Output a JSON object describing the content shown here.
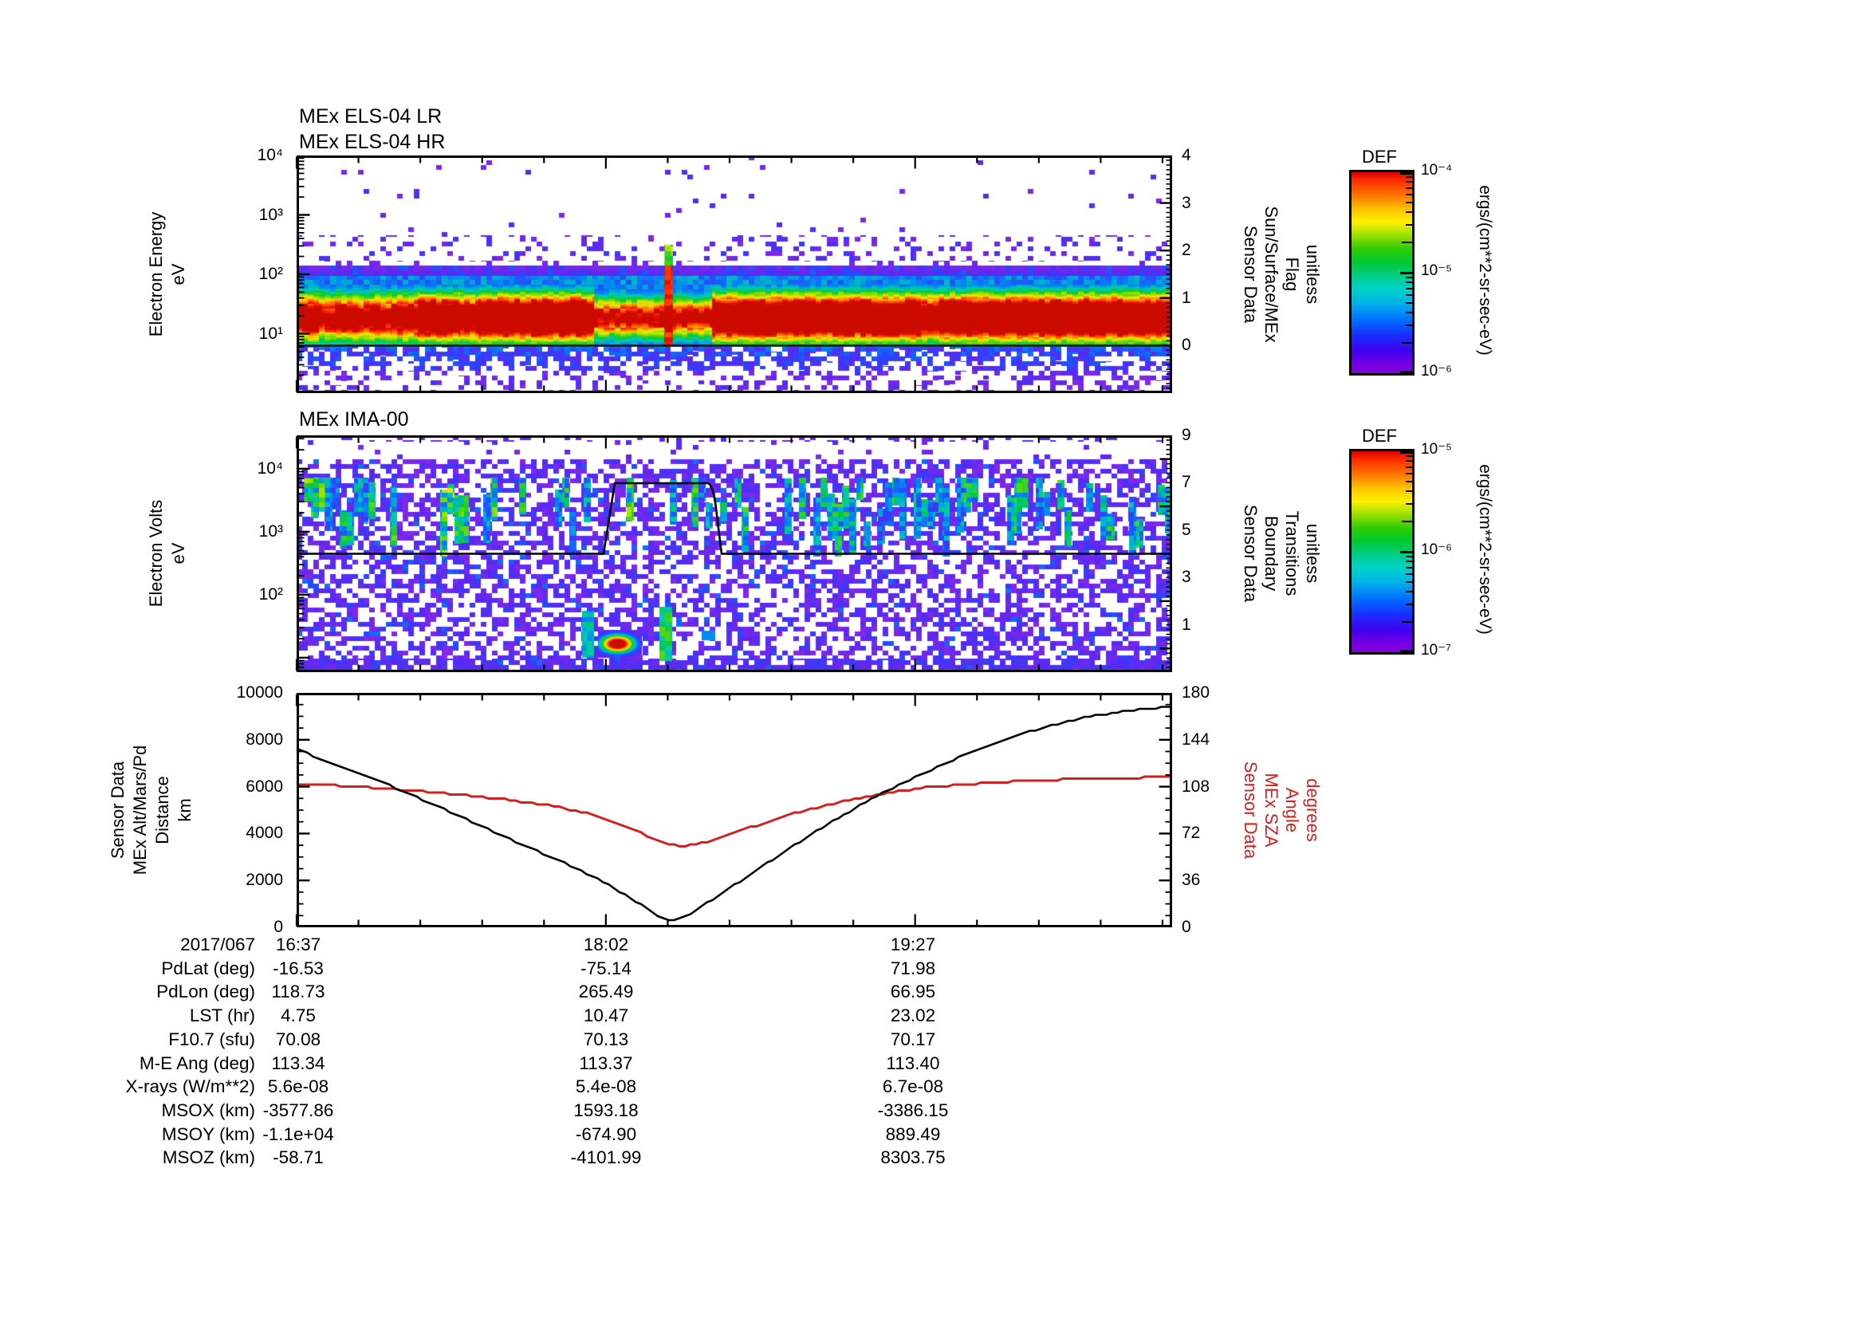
{
  "figure": {
    "panels": {
      "els": {
        "titles": [
          "MEx ELS-04 LR",
          "MEx ELS-04 HR"
        ],
        "left_axis": {
          "label_lines": [
            "Electron Energy",
            "eV"
          ],
          "tick_labels": [
            "10⁴",
            "10³",
            "10²",
            "10¹"
          ]
        },
        "right_axis": {
          "label_lines": [
            "Sensor Data",
            "Sun/Surface/MEx",
            "Flag",
            "unitless"
          ],
          "tick_labels": [
            "4",
            "3",
            "2",
            "1",
            "0"
          ],
          "color": "#000000"
        }
      },
      "ima": {
        "title": "MEx IMA-00",
        "left_axis": {
          "label_lines": [
            "Electron Volts",
            "eV"
          ],
          "tick_labels": [
            "10⁴",
            "10³",
            "10²"
          ]
        },
        "right_axis": {
          "label_lines": [
            "Sensor Data",
            "Boundary",
            "Transitions",
            "unitless"
          ],
          "tick_labels": [
            "9",
            "7",
            "5",
            "3",
            "1"
          ],
          "color": "#000000"
        }
      },
      "lines": {
        "left_axis": {
          "label_lines": [
            "Sensor Data",
            "MEx Alt/Mars/Pd",
            "Distance",
            "km"
          ],
          "tick_labels": [
            "10000",
            "8000",
            "6000",
            "4000",
            "2000",
            "0"
          ],
          "color": "#000000"
        },
        "right_axis": {
          "label_lines": [
            "Sensor Data",
            "MEx SZA",
            "Angle",
            "degrees"
          ],
          "tick_labels": [
            "180",
            "144",
            "108",
            "72",
            "36",
            "0"
          ],
          "color": "#cc2222"
        }
      }
    },
    "colorbars": [
      {
        "title": "DEF",
        "tick_labels": [
          "10⁻⁴",
          "10⁻⁵",
          "10⁻⁶"
        ],
        "units": "ergs/(cm**2-sr-sec-eV)"
      },
      {
        "title": "DEF",
        "tick_labels": [
          "10⁻⁵",
          "10⁻⁶",
          "10⁻⁷"
        ],
        "units": "ergs/(cm**2-sr-sec-eV)"
      }
    ],
    "table": {
      "row_labels": [
        "2017/067",
        "PdLat (deg)",
        "PdLon (deg)",
        "LST (hr)",
        "F10.7 (sfu)",
        "M-E Ang (deg)",
        "X-rays (W/m**2)",
        "MSOX (km)",
        "MSOY (km)",
        "MSOZ (km)"
      ],
      "columns": [
        [
          "16:37",
          "-16.53",
          "118.73",
          "4.75",
          "70.08",
          "113.34",
          "5.6e-08",
          "-3577.86",
          "-1.1e+04",
          "-58.71"
        ],
        [
          "18:02",
          "-75.14",
          "265.49",
          "10.47",
          "70.13",
          "113.37",
          "5.4e-08",
          "1593.18",
          "-674.90",
          "-4101.99"
        ],
        [
          "19:27",
          "71.98",
          "66.95",
          "23.02",
          "70.17",
          "113.40",
          "6.7e-08",
          "-3386.15",
          "889.49",
          "8303.75"
        ]
      ]
    }
  },
  "chart_data": [
    {
      "type": "heatmap",
      "title": "MEx ELS-04 LR / MEx ELS-04 HR",
      "xlabel": "UT on 2017/067, ticks at 16:37, 18:02, 19:27",
      "ylabel": "Electron Energy (eV)",
      "yrange_log": [
        1,
        10000
      ],
      "value_units": "ergs/(cm**2-sr-sec-eV)",
      "value_range_log": [
        1e-06,
        0.0001
      ],
      "legend": "DEF rainbow colorbar, red=high flux, violet=low, white=below range",
      "features": [
        "intense electron band ~4-100 eV across whole interval, red core ~10-40 eV",
        "band weakens to yellow/green between ~17:58 and ~18:18 (low altitude interval)",
        "narrow intense red spike reaching ~300 eV near 18:17",
        "thin white horizontal gap line near 155 eV separating LR/HR energy ranges",
        "sparse violet/blue speckle up to 10 keV, a few counts near 7 keV",
        "overplotted black line = Sun/Surface/MEx Flag, constant 0 on right axis (range -1..4)"
      ],
      "flag_line_value": 0
    },
    {
      "type": "heatmap",
      "title": "MEx IMA-00",
      "xlabel": "UT on 2017/067, ticks at 16:37, 18:02, 19:27",
      "ylabel": "Electron Volts (eV)",
      "yrange_log": [
        5.5,
        34000
      ],
      "value_units": "ergs/(cm**2-sr-sec-eV)",
      "value_range_log": [
        1e-07,
        1e-05
      ],
      "legend": "DEF rainbow colorbar",
      "features": [
        "low-flux violet/blue speckle over full energy range",
        "cyan/green vertical streaks mostly 0.3-2 keV, weaker between ~17:55 and ~18:15",
        "enhanced low-energy green/cyan patches with small red blob below ~50 eV near 18:05-18:20",
        "dense violet speckle row along bottom edge",
        "overplotted black step line = Boundary Transitions on right axis (range -1..9): 4 then 7 (~17:42-18:12) then 4"
      ],
      "boundary_line_points_fraction_value": [
        [
          0,
          4
        ],
        [
          0.351,
          4
        ],
        [
          0.363,
          7
        ],
        [
          0.469,
          7
        ],
        [
          0.485,
          4
        ],
        [
          1,
          4
        ]
      ]
    },
    {
      "type": "line",
      "title": "Sensor Data: MEx altitude and solar zenith angle",
      "x_tick_labels": [
        "16:37",
        "18:02",
        "19:27"
      ],
      "xlabel": "UT on 2017/067",
      "series": [
        {
          "name": "MEx Alt/Mars/Pd Distance",
          "units": "km",
          "color": "#000000",
          "axis": "left",
          "ylim": [
            0,
            10000
          ],
          "points_fraction_value": [
            [
              0,
              7600
            ],
            [
              0.05,
              6850
            ],
            [
              0.1,
              6150
            ],
            [
              0.15,
              5350
            ],
            [
              0.2,
              4500
            ],
            [
              0.25,
              3650
            ],
            [
              0.3,
              2850
            ],
            [
              0.34,
              2150
            ],
            [
              0.38,
              1300
            ],
            [
              0.4,
              800
            ],
            [
              0.42,
              320
            ],
            [
              0.43,
              250
            ],
            [
              0.45,
              600
            ],
            [
              0.48,
              1300
            ],
            [
              0.52,
              2300
            ],
            [
              0.56,
              3300
            ],
            [
              0.6,
              4250
            ],
            [
              0.65,
              5350
            ],
            [
              0.7,
              6300
            ],
            [
              0.75,
              7150
            ],
            [
              0.8,
              7900
            ],
            [
              0.85,
              8500
            ],
            [
              0.9,
              8950
            ],
            [
              0.95,
              9250
            ],
            [
              1.0,
              9400
            ]
          ]
        },
        {
          "name": "MEx SZA Angle",
          "units": "degrees",
          "color": "#cc2222",
          "axis": "right",
          "ylim": [
            0,
            180
          ],
          "points_fraction_value": [
            [
              0,
              110
            ],
            [
              0.04,
              109
            ],
            [
              0.08,
              107.5
            ],
            [
              0.12,
              105.5
            ],
            [
              0.16,
              103.5
            ],
            [
              0.2,
              101
            ],
            [
              0.24,
              98
            ],
            [
              0.28,
              94.5
            ],
            [
              0.32,
              89.5
            ],
            [
              0.35,
              84
            ],
            [
              0.38,
              77
            ],
            [
              0.4,
              70
            ],
            [
              0.42,
              64.5
            ],
            [
              0.44,
              62
            ],
            [
              0.46,
              64
            ],
            [
              0.48,
              68
            ],
            [
              0.52,
              77
            ],
            [
              0.56,
              86
            ],
            [
              0.6,
              93
            ],
            [
              0.64,
              99
            ],
            [
              0.68,
              104
            ],
            [
              0.72,
              107.5
            ],
            [
              0.76,
              109.5
            ],
            [
              0.8,
              111.5
            ],
            [
              0.85,
              113
            ],
            [
              0.9,
              114
            ],
            [
              1.0,
              115.5
            ]
          ]
        }
      ],
      "grid": false,
      "legend_position": "rotated axis titles left/right"
    }
  ]
}
